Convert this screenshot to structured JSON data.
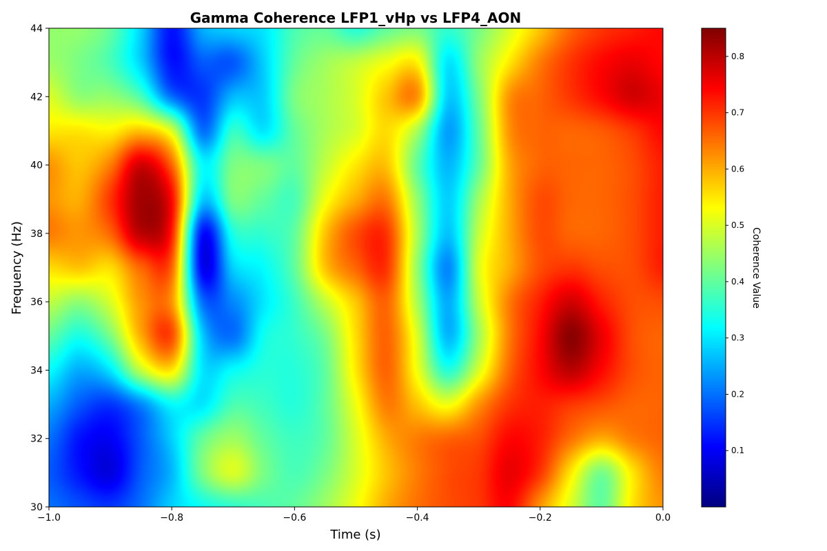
{
  "chart_data": {
    "type": "heatmap",
    "title": "Gamma Coherence LFP1_vHp vs LFP4_AON",
    "xlabel": "Time (s)",
    "ylabel": "Frequency (Hz)",
    "xlim": [
      -1.0,
      0.0
    ],
    "ylim": [
      30,
      44
    ],
    "x_ticks": [
      -1.0,
      -0.8,
      -0.6,
      -0.4,
      -0.2,
      0.0
    ],
    "x_tick_labels": [
      "−1.0",
      "−0.8",
      "−0.6",
      "−0.4",
      "−0.2",
      "0.0"
    ],
    "y_ticks": [
      30,
      32,
      34,
      36,
      38,
      40,
      42,
      44
    ],
    "y_tick_labels": [
      "30",
      "32",
      "34",
      "36",
      "38",
      "40",
      "42",
      "44"
    ],
    "colormap": "jet",
    "colorbar": {
      "label": "Coherence Value",
      "range": [
        0.0,
        0.85
      ],
      "ticks": [
        0.1,
        0.2,
        0.3,
        0.4,
        0.5,
        0.6,
        0.7,
        0.8
      ],
      "tick_labels": [
        "0.1",
        "0.2",
        "0.3",
        "0.4",
        "0.5",
        "0.6",
        "0.7",
        "0.8"
      ]
    },
    "grid": false,
    "times": [
      -1.0,
      -0.95,
      -0.9,
      -0.85,
      -0.8,
      -0.75,
      -0.7,
      -0.65,
      -0.6,
      -0.55,
      -0.5,
      -0.45,
      -0.4,
      -0.35,
      -0.3,
      -0.25,
      -0.2,
      -0.15,
      -0.1,
      -0.05,
      0.0
    ],
    "frequencies": [
      30,
      31,
      32,
      33,
      34,
      35,
      36,
      37,
      38,
      39,
      40,
      41,
      42,
      43,
      44
    ],
    "values": [
      [
        0.2,
        0.17,
        0.15,
        0.2,
        0.28,
        0.33,
        0.36,
        0.38,
        0.4,
        0.45,
        0.52,
        0.6,
        0.65,
        0.68,
        0.7,
        0.74,
        0.62,
        0.5,
        0.4,
        0.55,
        0.62
      ],
      [
        0.18,
        0.12,
        0.08,
        0.18,
        0.26,
        0.42,
        0.5,
        0.42,
        0.38,
        0.42,
        0.5,
        0.58,
        0.64,
        0.68,
        0.7,
        0.76,
        0.7,
        0.55,
        0.42,
        0.55,
        0.64
      ],
      [
        0.2,
        0.12,
        0.1,
        0.18,
        0.28,
        0.4,
        0.45,
        0.4,
        0.37,
        0.4,
        0.5,
        0.6,
        0.64,
        0.66,
        0.68,
        0.74,
        0.72,
        0.65,
        0.6,
        0.64,
        0.66
      ],
      [
        0.25,
        0.18,
        0.15,
        0.22,
        0.32,
        0.3,
        0.38,
        0.37,
        0.35,
        0.4,
        0.52,
        0.64,
        0.58,
        0.52,
        0.62,
        0.7,
        0.72,
        0.7,
        0.68,
        0.66,
        0.66
      ],
      [
        0.32,
        0.25,
        0.3,
        0.48,
        0.55,
        0.3,
        0.32,
        0.35,
        0.35,
        0.4,
        0.55,
        0.66,
        0.52,
        0.35,
        0.5,
        0.66,
        0.74,
        0.8,
        0.74,
        0.68,
        0.66
      ],
      [
        0.4,
        0.34,
        0.42,
        0.6,
        0.68,
        0.28,
        0.2,
        0.33,
        0.36,
        0.42,
        0.56,
        0.66,
        0.5,
        0.26,
        0.45,
        0.64,
        0.74,
        0.84,
        0.76,
        0.68,
        0.66
      ],
      [
        0.48,
        0.44,
        0.5,
        0.62,
        0.62,
        0.2,
        0.22,
        0.3,
        0.37,
        0.48,
        0.58,
        0.66,
        0.46,
        0.25,
        0.48,
        0.64,
        0.72,
        0.78,
        0.72,
        0.68,
        0.68
      ],
      [
        0.56,
        0.58,
        0.56,
        0.66,
        0.66,
        0.1,
        0.28,
        0.32,
        0.4,
        0.58,
        0.66,
        0.7,
        0.44,
        0.22,
        0.5,
        0.6,
        0.68,
        0.7,
        0.68,
        0.68,
        0.72
      ],
      [
        0.64,
        0.62,
        0.66,
        0.8,
        0.72,
        0.12,
        0.34,
        0.36,
        0.4,
        0.58,
        0.68,
        0.7,
        0.46,
        0.27,
        0.48,
        0.6,
        0.68,
        0.66,
        0.66,
        0.68,
        0.72
      ],
      [
        0.62,
        0.6,
        0.7,
        0.82,
        0.74,
        0.28,
        0.42,
        0.4,
        0.38,
        0.52,
        0.6,
        0.64,
        0.44,
        0.28,
        0.45,
        0.6,
        0.68,
        0.66,
        0.66,
        0.68,
        0.72
      ],
      [
        0.62,
        0.58,
        0.64,
        0.78,
        0.66,
        0.32,
        0.42,
        0.42,
        0.4,
        0.48,
        0.55,
        0.58,
        0.4,
        0.26,
        0.4,
        0.6,
        0.66,
        0.66,
        0.66,
        0.68,
        0.72
      ],
      [
        0.55,
        0.55,
        0.54,
        0.58,
        0.5,
        0.2,
        0.36,
        0.3,
        0.4,
        0.46,
        0.5,
        0.56,
        0.46,
        0.24,
        0.4,
        0.62,
        0.66,
        0.66,
        0.67,
        0.7,
        0.74
      ],
      [
        0.5,
        0.44,
        0.44,
        0.38,
        0.2,
        0.15,
        0.26,
        0.28,
        0.42,
        0.46,
        0.5,
        0.58,
        0.62,
        0.28,
        0.42,
        0.62,
        0.66,
        0.7,
        0.74,
        0.78,
        0.76
      ],
      [
        0.45,
        0.42,
        0.38,
        0.28,
        0.12,
        0.18,
        0.18,
        0.28,
        0.4,
        0.45,
        0.48,
        0.52,
        0.54,
        0.3,
        0.44,
        0.55,
        0.64,
        0.7,
        0.74,
        0.76,
        0.74
      ],
      [
        0.44,
        0.44,
        0.4,
        0.28,
        0.12,
        0.25,
        0.28,
        0.3,
        0.38,
        0.4,
        0.35,
        0.4,
        0.42,
        0.36,
        0.42,
        0.5,
        0.58,
        0.66,
        0.7,
        0.72,
        0.74
      ]
    ]
  }
}
